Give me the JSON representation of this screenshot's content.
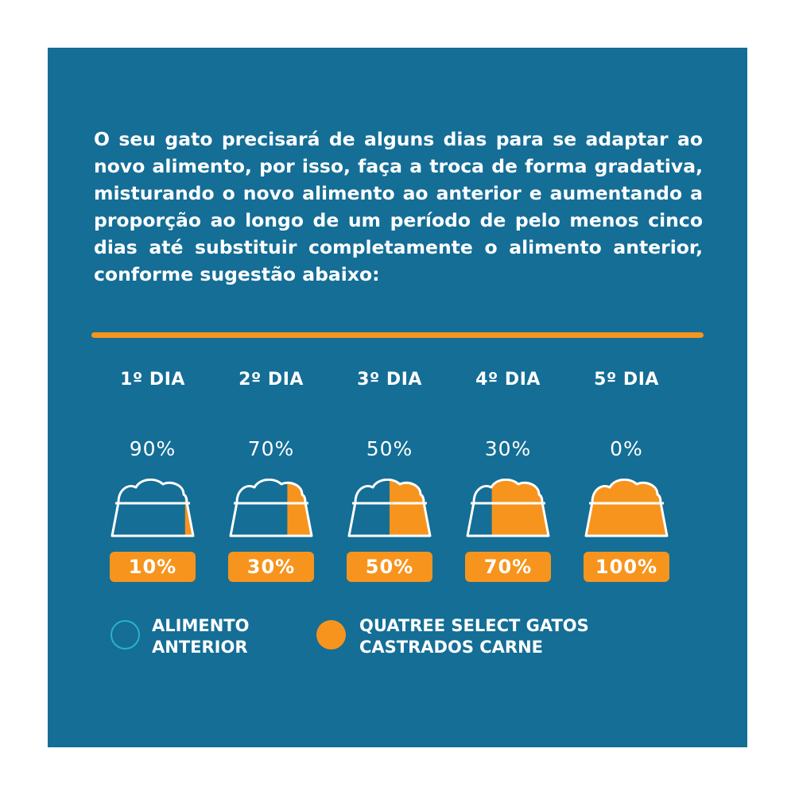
{
  "intro_text": "O seu gato precisará de alguns dias para se adaptar ao novo alimento, por isso, faça a troca de forma gradativa, misturando o novo alimento ao anterior e aumentando a proporção ao longo de um período de pelo menos cinco dias até substituir completamente o alimento anterior, conforme sugestão abaixo:",
  "colors": {
    "background": "#146e96",
    "accent_orange": "#f7941d",
    "white": "#ffffff"
  },
  "days": [
    {
      "label": "1º DIA",
      "previous_pct": "90%",
      "new_pct": "10%",
      "new_fraction": 0.1
    },
    {
      "label": "2º DIA",
      "previous_pct": "70%",
      "new_pct": "30%",
      "new_fraction": 0.3
    },
    {
      "label": "3º DIA",
      "previous_pct": "50%",
      "new_pct": "50%",
      "new_fraction": 0.5
    },
    {
      "label": "4º DIA",
      "previous_pct": "30%",
      "new_pct": "70%",
      "new_fraction": 0.7
    },
    {
      "label": "5º DIA",
      "previous_pct": "0%",
      "new_pct": "100%",
      "new_fraction": 1.0
    }
  ],
  "legend": {
    "previous": {
      "line1": "ALIMENTO",
      "line2": "ANTERIOR",
      "icon": "teal-circle"
    },
    "new": {
      "line1": "QUATREE SELECT GATOS",
      "line2": "CASTRADOS CARNE",
      "icon": "orange-circle"
    }
  }
}
